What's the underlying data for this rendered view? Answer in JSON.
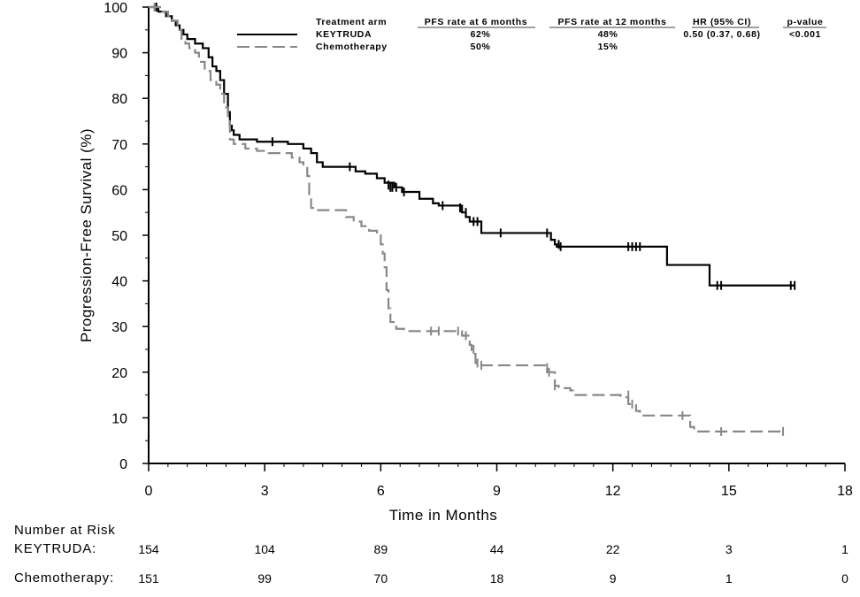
{
  "chart_data": {
    "type": "line",
    "xlabel": "Time in Months",
    "ylabel": "Progression-Free Survival (%)",
    "xlim": [
      0,
      18
    ],
    "ylim": [
      0,
      100
    ],
    "xticks": [
      "0",
      "3",
      "6",
      "9",
      "12",
      "15",
      "18"
    ],
    "yticks": [
      "0",
      "10",
      "20",
      "30",
      "40",
      "50",
      "60",
      "70",
      "80",
      "90",
      "100"
    ],
    "grid": false,
    "legend": {
      "placement": "top-right",
      "headers": [
        "Treatment arm",
        "PFS rate at 6 months",
        "PFS rate at 12 months",
        "HR (95% CI)",
        "p-value"
      ],
      "rows": [
        {
          "arm": "KEYTRUDA",
          "pfs6": "62%",
          "pfs12": "48%",
          "hr": "0.50 (0.37, 0.68)",
          "p": "<0.001",
          "color": "#000000",
          "dash": "solid"
        },
        {
          "arm": "Chemotherapy",
          "pfs6": "50%",
          "pfs12": "15%",
          "hr": "",
          "p": "",
          "color": "#888888",
          "dash": "dashed"
        }
      ]
    },
    "series": [
      {
        "name": "KEYTRUDA",
        "color": "#000000",
        "dash": "solid",
        "steps": [
          [
            0,
            100
          ],
          [
            0.25,
            99
          ],
          [
            0.45,
            98
          ],
          [
            0.6,
            97
          ],
          [
            0.7,
            96
          ],
          [
            0.8,
            95
          ],
          [
            0.9,
            94
          ],
          [
            1.0,
            93
          ],
          [
            1.2,
            92
          ],
          [
            1.4,
            91
          ],
          [
            1.55,
            89
          ],
          [
            1.65,
            87
          ],
          [
            1.75,
            86
          ],
          [
            1.85,
            84
          ],
          [
            1.95,
            81
          ],
          [
            2.05,
            77
          ],
          [
            2.1,
            74
          ],
          [
            2.15,
            73
          ],
          [
            2.2,
            72
          ],
          [
            2.35,
            71
          ],
          [
            2.8,
            70.5
          ],
          [
            3.6,
            70
          ],
          [
            4.0,
            69
          ],
          [
            4.2,
            68
          ],
          [
            4.35,
            66
          ],
          [
            4.5,
            65
          ],
          [
            5.35,
            64
          ],
          [
            5.6,
            63.5
          ],
          [
            5.9,
            62.5
          ],
          [
            6.1,
            61.5
          ],
          [
            6.35,
            60.5
          ],
          [
            6.55,
            59.5
          ],
          [
            7.0,
            58
          ],
          [
            7.35,
            57
          ],
          [
            7.5,
            56.5
          ],
          [
            8.1,
            55
          ],
          [
            8.2,
            54
          ],
          [
            8.3,
            53
          ],
          [
            8.6,
            50.5
          ],
          [
            10.4,
            49
          ],
          [
            10.5,
            48
          ],
          [
            10.55,
            47.5
          ],
          [
            13.4,
            43.5
          ],
          [
            14.5,
            39
          ],
          [
            16.7,
            39
          ]
        ],
        "censored": [
          [
            0.2,
            100
          ],
          [
            3.2,
            70.5
          ],
          [
            5.2,
            65
          ],
          [
            6.2,
            61
          ],
          [
            6.25,
            60.5
          ],
          [
            6.3,
            60.5
          ],
          [
            6.4,
            60.5
          ],
          [
            6.6,
            59.5
          ],
          [
            7.6,
            56.5
          ],
          [
            8.05,
            56
          ],
          [
            8.2,
            55
          ],
          [
            8.4,
            53
          ],
          [
            8.5,
            53
          ],
          [
            9.1,
            50.5
          ],
          [
            10.3,
            50.5
          ],
          [
            10.6,
            48
          ],
          [
            10.65,
            47.5
          ],
          [
            12.4,
            47.5
          ],
          [
            12.5,
            47.5
          ],
          [
            12.6,
            47.5
          ],
          [
            12.7,
            47.5
          ],
          [
            14.7,
            39
          ],
          [
            14.8,
            39
          ],
          [
            16.6,
            39
          ],
          [
            16.7,
            39
          ]
        ]
      },
      {
        "name": "Chemotherapy",
        "color": "#888888",
        "dash": "dashed",
        "steps": [
          [
            0,
            100
          ],
          [
            0.35,
            99
          ],
          [
            0.5,
            98
          ],
          [
            0.6,
            97
          ],
          [
            0.75,
            95
          ],
          [
            0.85,
            93
          ],
          [
            0.95,
            92
          ],
          [
            1.05,
            91
          ],
          [
            1.2,
            90
          ],
          [
            1.3,
            88
          ],
          [
            1.45,
            86
          ],
          [
            1.6,
            84
          ],
          [
            1.75,
            83
          ],
          [
            1.85,
            81
          ],
          [
            1.95,
            78
          ],
          [
            2.05,
            75
          ],
          [
            2.1,
            71
          ],
          [
            2.2,
            70
          ],
          [
            2.5,
            69
          ],
          [
            2.8,
            68.5
          ],
          [
            3.1,
            68
          ],
          [
            3.7,
            67
          ],
          [
            3.9,
            66
          ],
          [
            4.0,
            65
          ],
          [
            4.1,
            63
          ],
          [
            4.15,
            59
          ],
          [
            4.2,
            56
          ],
          [
            4.3,
            55.5
          ],
          [
            5.1,
            54
          ],
          [
            5.3,
            53
          ],
          [
            5.5,
            52
          ],
          [
            5.7,
            51
          ],
          [
            5.9,
            50
          ],
          [
            6.0,
            48
          ],
          [
            6.05,
            46
          ],
          [
            6.1,
            43
          ],
          [
            6.15,
            38
          ],
          [
            6.2,
            34
          ],
          [
            6.25,
            31
          ],
          [
            6.4,
            29.5
          ],
          [
            6.6,
            29
          ],
          [
            8.1,
            28
          ],
          [
            8.3,
            26
          ],
          [
            8.35,
            24
          ],
          [
            8.45,
            22
          ],
          [
            8.6,
            21.5
          ],
          [
            10.3,
            20
          ],
          [
            10.5,
            17
          ],
          [
            10.6,
            16.5
          ],
          [
            10.9,
            16
          ],
          [
            11.0,
            15
          ],
          [
            12.2,
            14.5
          ],
          [
            12.4,
            13
          ],
          [
            12.6,
            11.5
          ],
          [
            12.7,
            10.5
          ],
          [
            14.0,
            8
          ],
          [
            14.1,
            7
          ],
          [
            16.4,
            7
          ]
        ],
        "censored": [
          [
            0.15,
            100
          ],
          [
            7.3,
            29
          ],
          [
            7.5,
            29
          ],
          [
            8.0,
            29
          ],
          [
            8.2,
            28
          ],
          [
            8.4,
            25
          ],
          [
            8.5,
            22
          ],
          [
            8.6,
            21.5
          ],
          [
            10.3,
            21
          ],
          [
            10.35,
            20
          ],
          [
            10.5,
            17
          ],
          [
            12.4,
            15
          ],
          [
            12.5,
            13
          ],
          [
            13.8,
            10.5
          ],
          [
            14.8,
            7
          ],
          [
            16.4,
            7
          ]
        ]
      }
    ]
  },
  "risk_table": {
    "title": "Number at Risk",
    "rows": [
      {
        "label": "KEYTRUDA:",
        "values": [
          "154",
          "104",
          "89",
          "44",
          "22",
          "3",
          "1"
        ]
      },
      {
        "label": "Chemotherapy:",
        "values": [
          "151",
          "99",
          "70",
          "18",
          "9",
          "1",
          "0"
        ]
      }
    ]
  }
}
